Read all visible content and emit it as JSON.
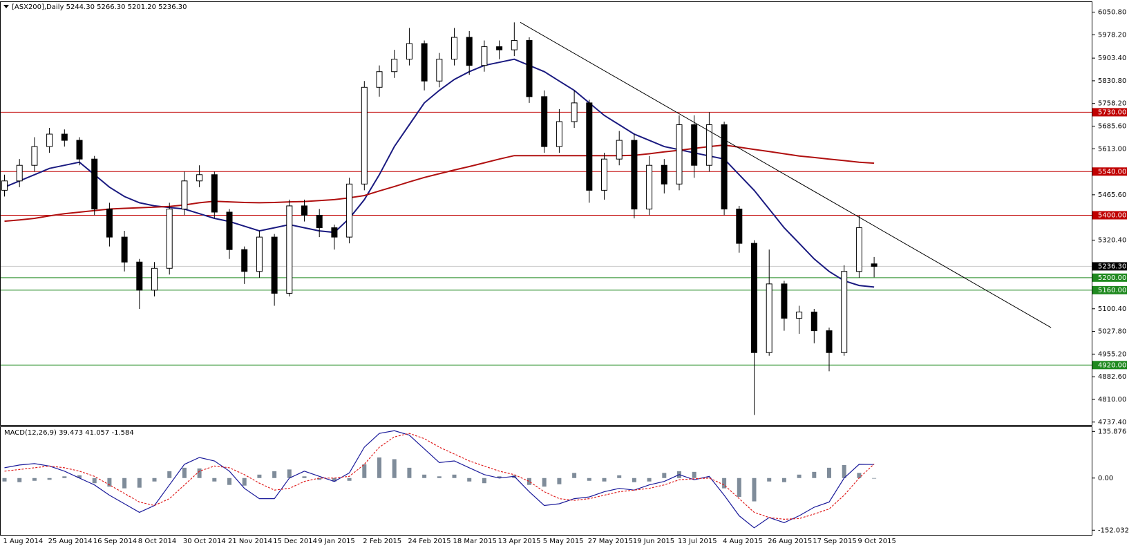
{
  "chart_data": [
    {
      "type": "candlestick",
      "title": "[ASX200],Daily  5244.30 5266.30 5201.20 5236.30",
      "categories": [
        "1 Aug 2014",
        null,
        null,
        "25 Aug 2014",
        null,
        null,
        "16 Sep 2014",
        null,
        null,
        "8 Oct 2014",
        null,
        null,
        "30 Oct 2014",
        null,
        null,
        "21 Nov 2014",
        null,
        null,
        "15 Dec 2014",
        null,
        null,
        "9 Jan 2015",
        null,
        null,
        "2 Feb 2015",
        null,
        null,
        "24 Feb 2015",
        null,
        null,
        "18 Mar 2015",
        null,
        null,
        "13 Apr 2015",
        null,
        null,
        "5 May 2015",
        null,
        null,
        "27 May 2015",
        null,
        null,
        "19 Jun 2015",
        null,
        null,
        "13 Jul 2015",
        null,
        null,
        "4 Aug 2015",
        null,
        null,
        "26 Aug 2015",
        null,
        null,
        "17 Sep 2015",
        null,
        null,
        "9 Oct 2015",
        null
      ],
      "open": [
        5480,
        5510,
        5560,
        5620,
        5660,
        5640,
        5580,
        5420,
        5330,
        5250,
        5160,
        5230,
        5420,
        5510,
        5530,
        5410,
        5290,
        5220,
        5330,
        5150,
        5430,
        5400,
        5360,
        5330,
        5500,
        5810,
        5860,
        5900,
        5950,
        5830,
        5900,
        5970,
        5880,
        5940,
        5930,
        5960,
        5780,
        5620,
        5700,
        5760,
        5480,
        5580,
        5640,
        5420,
        5560,
        5500,
        5690,
        5560,
        5690,
        5420,
        5310,
        4960,
        5180,
        5070,
        5090,
        5030,
        4960,
        5220,
        5244.3
      ],
      "high": [
        5530,
        5580,
        5650,
        5680,
        5675,
        5650,
        5590,
        5440,
        5350,
        5260,
        5250,
        5440,
        5540,
        5560,
        5540,
        5420,
        5300,
        5350,
        5340,
        5450,
        5450,
        5420,
        5370,
        5520,
        5830,
        5880,
        5930,
        6000,
        5960,
        5920,
        6000,
        5990,
        5960,
        5960,
        6018,
        5970,
        5800,
        5740,
        5800,
        5770,
        5600,
        5670,
        5660,
        5590,
        5580,
        5720,
        5720,
        5730,
        5700,
        5430,
        5320,
        5290,
        5190,
        5110,
        5100,
        5040,
        5240,
        5400,
        5266.3
      ],
      "low": [
        5460,
        5490,
        5540,
        5600,
        5620,
        5560,
        5400,
        5300,
        5220,
        5100,
        5140,
        5210,
        5400,
        5490,
        5390,
        5260,
        5180,
        5200,
        5110,
        5140,
        5380,
        5330,
        5290,
        5310,
        5480,
        5780,
        5840,
        5880,
        5800,
        5810,
        5880,
        5850,
        5860,
        5900,
        5910,
        5760,
        5600,
        5600,
        5680,
        5440,
        5450,
        5560,
        5390,
        5400,
        5470,
        5480,
        5520,
        5540,
        5400,
        5280,
        4760,
        4950,
        5030,
        5020,
        4990,
        4900,
        4950,
        5200,
        5201.2
      ],
      "close": [
        5510,
        5560,
        5620,
        5660,
        5640,
        5580,
        5420,
        5330,
        5250,
        5160,
        5230,
        5420,
        5510,
        5530,
        5410,
        5290,
        5220,
        5330,
        5150,
        5430,
        5400,
        5360,
        5330,
        5500,
        5810,
        5860,
        5900,
        5950,
        5830,
        5900,
        5970,
        5880,
        5940,
        5930,
        5960,
        5780,
        5620,
        5700,
        5760,
        5480,
        5580,
        5640,
        5420,
        5560,
        5500,
        5690,
        5560,
        5690,
        5420,
        5310,
        4960,
        5180,
        5070,
        5090,
        5030,
        4960,
        5220,
        5360,
        5236.3
      ],
      "lines": [
        {
          "color": "#1a1a80",
          "values": [
            5490,
            5510,
            5530,
            5550,
            5560,
            5570,
            5530,
            5490,
            5460,
            5440,
            5430,
            5425,
            5420,
            5405,
            5390,
            5380,
            5365,
            5350,
            5360,
            5370,
            5360,
            5350,
            5345,
            5390,
            5450,
            5530,
            5620,
            5690,
            5760,
            5800,
            5835,
            5860,
            5880,
            5890,
            5900,
            5880,
            5860,
            5830,
            5800,
            5760,
            5720,
            5690,
            5660,
            5640,
            5620,
            5610,
            5600,
            5590,
            5580,
            5530,
            5480,
            5420,
            5360,
            5310,
            5260,
            5220,
            5190,
            5175,
            5170
          ]
        },
        {
          "color": "#b01010",
          "values": [
            5381,
            5385,
            5390,
            5398,
            5405,
            5410,
            5415,
            5420,
            5422,
            5424,
            5426,
            5428,
            5433,
            5440,
            5445,
            5443,
            5441,
            5440,
            5441,
            5443,
            5444,
            5447,
            5450,
            5456,
            5463,
            5478,
            5492,
            5507,
            5521,
            5533,
            5545,
            5556,
            5568,
            5580,
            5591,
            5591,
            5591,
            5591,
            5591,
            5591,
            5591,
            5591,
            5592,
            5597,
            5603,
            5608,
            5614,
            5620,
            5625,
            5618,
            5611,
            5604,
            5597,
            5590,
            5585,
            5580,
            5575,
            5570,
            5567
          ]
        }
      ],
      "trendline": {
        "x": [
          34.4,
          69.8
        ],
        "y": [
          6018,
          5040
        ],
        "color": "#000000"
      },
      "levels": [
        {
          "value": 5730,
          "label": "5730.00",
          "color": "#c00000"
        },
        {
          "value": 5540,
          "label": "5540.00",
          "color": "#c00000"
        },
        {
          "value": 5400,
          "label": "5400.00",
          "color": "#c00000"
        },
        {
          "value": 5200,
          "label": "5200.00",
          "color": "#208a20"
        },
        {
          "value": 5160,
          "label": "5160.00",
          "color": "#208a20"
        },
        {
          "value": 4920,
          "label": "4920.00",
          "color": "#208a20"
        }
      ],
      "last_price": {
        "value": 5236.3,
        "label": "5236.30"
      },
      "ylim": [
        4728,
        6083
      ],
      "yticks": [
        {
          "value": 6050.8,
          "label": "6050.80"
        },
        {
          "value": 5978.2,
          "label": "5978.20"
        },
        {
          "value": 5903.4,
          "label": "5903.40"
        },
        {
          "value": 5830.8,
          "label": "5830.80"
        },
        {
          "value": 5758.2,
          "label": "5758.20"
        },
        {
          "value": 5685.6,
          "label": "5685.60"
        },
        {
          "value": 5613,
          "label": "5613.00"
        },
        {
          "value": 5465.6,
          "label": "5465.60"
        },
        {
          "value": 5320.4,
          "label": "5320.40"
        },
        {
          "value": 5100.4,
          "label": "5100.40"
        },
        {
          "value": 5027.8,
          "label": "5027.80"
        },
        {
          "value": 4955.2,
          "label": "4955.20"
        },
        {
          "value": 4882.6,
          "label": "4882.60"
        },
        {
          "value": 4810,
          "label": "4810.00"
        },
        {
          "value": 4737.4,
          "label": "4737.40"
        }
      ]
    },
    {
      "type": "macd",
      "title": "MACD(12,26,9) 39.473 41.057 -1.584",
      "histogram": {
        "color": "#7f8c9a",
        "values": [
          -10,
          -12,
          -8,
          -5,
          5,
          8,
          -15,
          -25,
          -30,
          -28,
          -10,
          20,
          30,
          28,
          -10,
          -20,
          -22,
          10,
          20,
          25,
          5,
          -5,
          -10,
          -8,
          40,
          60,
          55,
          30,
          10,
          5,
          10,
          -10,
          -15,
          5,
          8,
          -20,
          -25,
          -18,
          15,
          -8,
          -10,
          8,
          -12,
          -10,
          15,
          20,
          18,
          2,
          -30,
          -55,
          -68,
          -10,
          -12,
          10,
          18,
          30,
          38,
          15,
          -1.6
        ]
      },
      "lines": [
        {
          "color": "#1a1a9a",
          "dash": false,
          "values": [
            30,
            38,
            42,
            35,
            20,
            0,
            -20,
            -50,
            -75,
            -100,
            -80,
            -20,
            40,
            60,
            50,
            20,
            -30,
            -60,
            -60,
            0,
            20,
            5,
            -10,
            15,
            90,
            130,
            138,
            125,
            85,
            45,
            50,
            30,
            10,
            0,
            5,
            -40,
            -80,
            -75,
            -60,
            -55,
            -40,
            -30,
            -35,
            -20,
            -10,
            10,
            -5,
            5,
            -50,
            -110,
            -145,
            -115,
            -130,
            -110,
            -85,
            -70,
            0,
            40,
            39.5
          ]
        },
        {
          "color": "#e02020",
          "dash": true,
          "values": [
            20,
            25,
            30,
            35,
            30,
            20,
            5,
            -20,
            -45,
            -70,
            -80,
            -60,
            -20,
            20,
            35,
            30,
            10,
            -15,
            -35,
            -30,
            -10,
            0,
            0,
            5,
            40,
            90,
            120,
            130,
            115,
            90,
            70,
            50,
            35,
            20,
            10,
            -10,
            -40,
            -60,
            -65,
            -60,
            -50,
            -40,
            -35,
            -30,
            -20,
            -5,
            -2,
            0,
            -20,
            -60,
            -100,
            -115,
            -120,
            -118,
            -105,
            -90,
            -50,
            0,
            41.1
          ]
        }
      ],
      "ylim": [
        -165.6,
        148.6
      ],
      "yticks": [
        135.876,
        {
          "value": 0,
          "label": "0.00"
        },
        -152.032
      ]
    }
  ]
}
